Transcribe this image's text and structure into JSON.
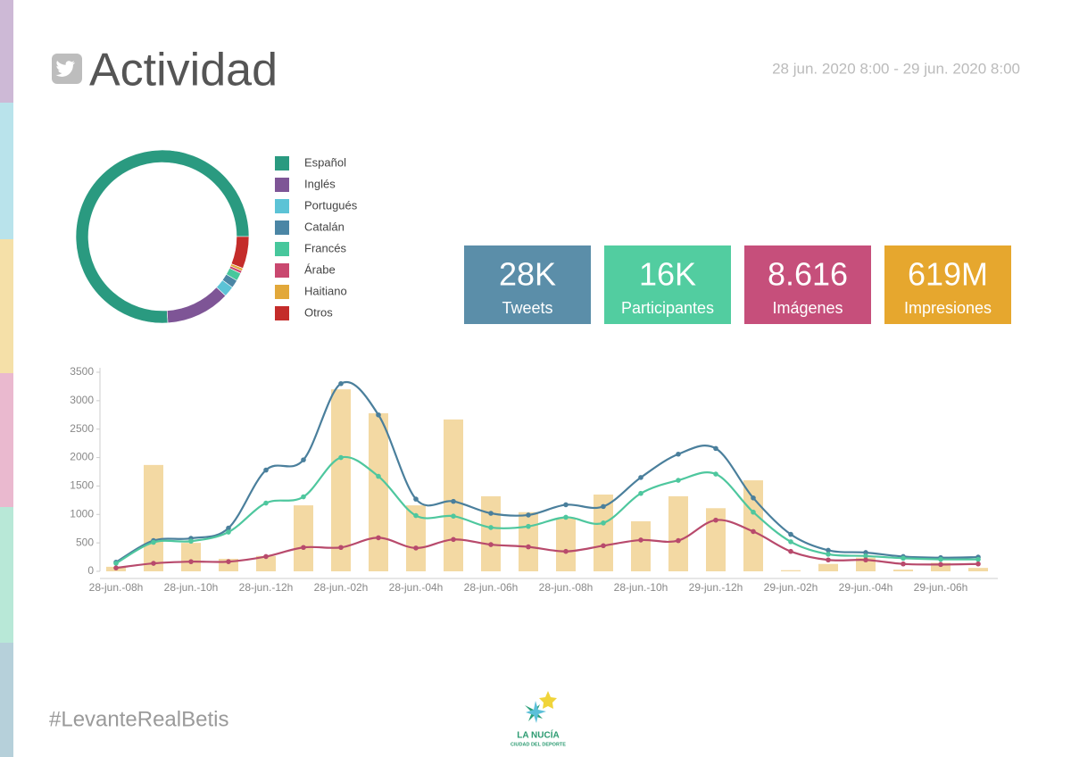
{
  "header": {
    "title": "Actividad",
    "date_range": "28 jun. 2020 8:00 - 29 jun. 2020 8:00"
  },
  "kpis": [
    {
      "value": "28K",
      "label": "Tweets",
      "color": "#5b8ea9"
    },
    {
      "value": "16K",
      "label": "Participantes",
      "color": "#52cda0"
    },
    {
      "value": "8.616",
      "label": "Imágenes",
      "color": "#c64f7b"
    },
    {
      "value": "619M",
      "label": "Impresiones",
      "color": "#e6a72e"
    }
  ],
  "chart_data": [
    {
      "type": "donut",
      "categories": [
        "Español",
        "Inglés",
        "Portugués",
        "Catalán",
        "Francés",
        "Árabe",
        "Haitiano",
        "Otros"
      ],
      "values": [
        76,
        12,
        2,
        1.5,
        1.5,
        0.5,
        0.5,
        6
      ],
      "colors": [
        "#2a9a80",
        "#7e5596",
        "#5cc3d6",
        "#4b86a5",
        "#47c79c",
        "#c9486f",
        "#e2a83a",
        "#c42c2a"
      ]
    },
    {
      "type": "combo",
      "categories": [
        "28-jun.-08h",
        null,
        "28-jun.-10h",
        null,
        "28-jun.-12h",
        null,
        "28-jun.-02h",
        null,
        "28-jun.-04h",
        null,
        "28-jun.-06h",
        null,
        "28-jun.-08h",
        null,
        "28-jun.-10h",
        null,
        "29-jun.-12h",
        null,
        "29-jun.-02h",
        null,
        "29-jun.-04h",
        null,
        "29-jun.-06h",
        null
      ],
      "ylim": [
        0,
        3500
      ],
      "yticks": [
        0,
        500,
        1000,
        1500,
        2000,
        2500,
        3000,
        3500
      ],
      "series": [
        {
          "type": "bar",
          "color": "#f3d9a3",
          "values": [
            80,
            1870,
            500,
            220,
            270,
            1160,
            3200,
            2780,
            1160,
            2670,
            1320,
            1040,
            930,
            1350,
            880,
            1320,
            1110,
            1600,
            20,
            130,
            240,
            30,
            150,
            60
          ]
        },
        {
          "type": "line",
          "color": "#4a7f9c",
          "values": [
            160,
            540,
            580,
            760,
            1780,
            1960,
            3300,
            2750,
            1270,
            1230,
            1020,
            990,
            1170,
            1140,
            1650,
            2060,
            2160,
            1290,
            650,
            370,
            330,
            260,
            240,
            250
          ]
        },
        {
          "type": "line",
          "color": "#4ec79e",
          "values": [
            140,
            510,
            530,
            690,
            1200,
            1310,
            2000,
            1670,
            980,
            970,
            770,
            790,
            950,
            850,
            1370,
            1600,
            1710,
            1040,
            520,
            300,
            270,
            230,
            210,
            210
          ]
        },
        {
          "type": "line",
          "color": "#b84a6c",
          "values": [
            60,
            140,
            170,
            170,
            260,
            420,
            420,
            590,
            410,
            560,
            470,
            430,
            350,
            450,
            550,
            540,
            900,
            700,
            350,
            200,
            200,
            130,
            120,
            130
          ]
        }
      ]
    }
  ],
  "footer": {
    "hashtag": "#LevanteRealBetis",
    "logo_name": "LA NUCÍA",
    "logo_tagline": "CIUDAD DEL DEPORTE"
  }
}
